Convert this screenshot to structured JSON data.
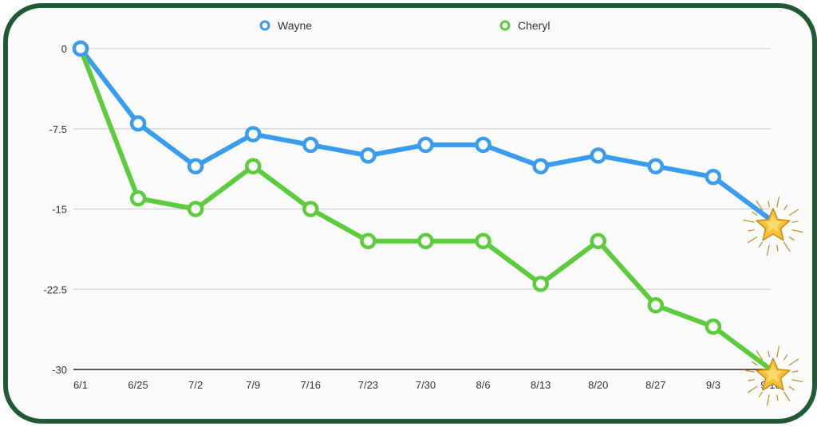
{
  "chart_data": {
    "type": "line",
    "x": [
      "6/1",
      "6/25",
      "7/2",
      "7/9",
      "7/16",
      "7/23",
      "7/30",
      "8/6",
      "8/13",
      "8/20",
      "8/27",
      "9/3",
      "9/10"
    ],
    "series": [
      {
        "name": "Wayne",
        "color": "#3a9cf0",
        "values": [
          0,
          -7,
          -11,
          -8,
          -9,
          -10,
          -9,
          -9,
          -11,
          -10,
          -11,
          -12,
          -16
        ]
      },
      {
        "name": "Cheryl",
        "color": "#5ccc3c",
        "values": [
          0,
          -14,
          -15,
          -11,
          -15,
          -18,
          -18,
          -18,
          -22,
          -18,
          -24,
          -26,
          -30
        ]
      }
    ],
    "yticks": [
      "0",
      "-7.5",
      "-15",
      "-22.5",
      "-30"
    ],
    "ylim": [
      -30,
      0
    ],
    "grid": true,
    "legend": "top-center",
    "end_marker": "star-icon"
  }
}
